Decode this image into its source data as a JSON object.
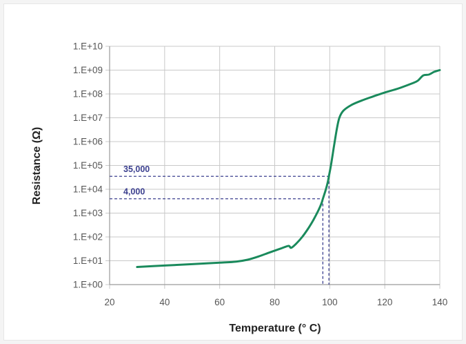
{
  "chart_data": {
    "type": "line",
    "xlabel": "Temperature (° C)",
    "ylabel": "Resistance (Ω)",
    "xlim": [
      20,
      140
    ],
    "ylim": [
      1,
      10000000000
    ],
    "y_scale": "log",
    "x_ticks": [
      "20",
      "40",
      "60",
      "80",
      "100",
      "120",
      "140"
    ],
    "y_ticks": [
      "1.E+00",
      "1.E+01",
      "1.E+02",
      "1.E+03",
      "1.E+04",
      "1.E+05",
      "1.E+06",
      "1.E+07",
      "1.E+08",
      "1.E+09",
      "1.E+10"
    ],
    "grid": true,
    "series": [
      {
        "color": "#1a8a5c",
        "points": [
          [
            30,
            5.5
          ],
          [
            40,
            6.3
          ],
          [
            50,
            7.2
          ],
          [
            60,
            8.3
          ],
          [
            66,
            9.2
          ],
          [
            70,
            11
          ],
          [
            74,
            15
          ],
          [
            78,
            22
          ],
          [
            82,
            32
          ],
          [
            85,
            42
          ],
          [
            86,
            35
          ],
          [
            88,
            55
          ],
          [
            90,
            100
          ],
          [
            92,
            210
          ],
          [
            94,
            500
          ],
          [
            96,
            1400
          ],
          [
            97,
            2600
          ],
          [
            97.5,
            4000
          ],
          [
            98.5,
            9000
          ],
          [
            99.3,
            20000
          ],
          [
            99.7,
            35000
          ],
          [
            100.5,
            110000
          ],
          [
            101.5,
            600000
          ],
          [
            102.5,
            3000000
          ],
          [
            103.5,
            10000000
          ],
          [
            105,
            20000000
          ],
          [
            108,
            35000000
          ],
          [
            112,
            55000000
          ],
          [
            116,
            80000000
          ],
          [
            120,
            115000000
          ],
          [
            125,
            170000000
          ],
          [
            130,
            280000000
          ],
          [
            132,
            360000000
          ],
          [
            134,
            600000000
          ],
          [
            136,
            650000000
          ],
          [
            138,
            850000000
          ],
          [
            140,
            1000000000
          ]
        ]
      }
    ],
    "annotations": [
      {
        "label": "35,000",
        "y": 35000,
        "x": 99.7
      },
      {
        "label": "4,000",
        "y": 4000,
        "x": 97.5
      }
    ],
    "annotation_color": "#3b3f8f"
  }
}
